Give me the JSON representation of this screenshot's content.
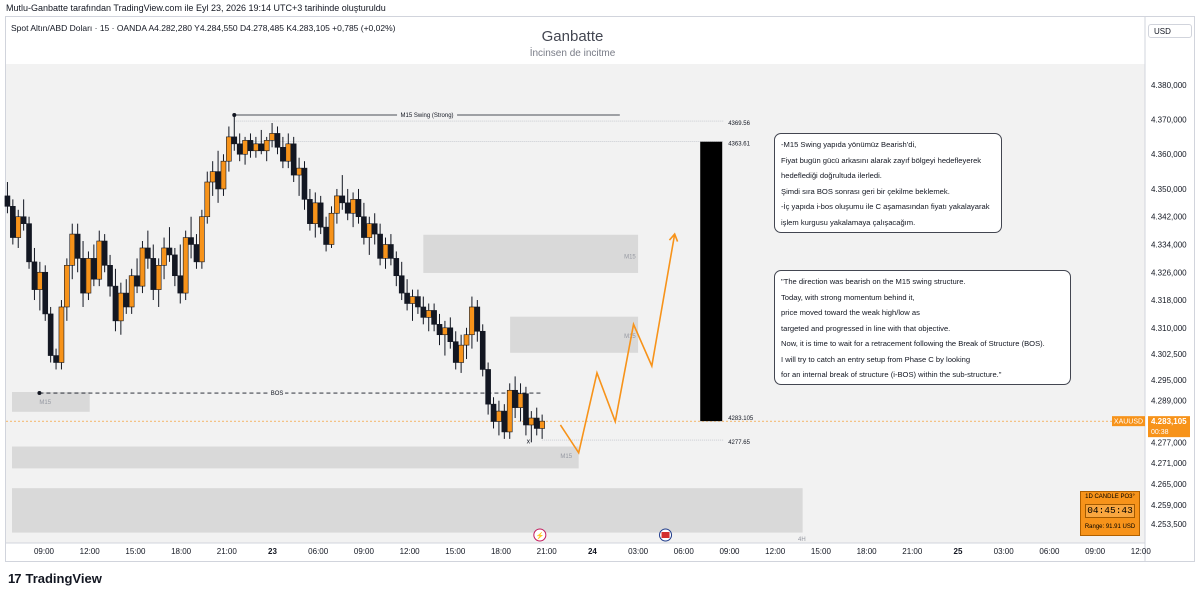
{
  "header": {
    "caption": "Mutlu-Ganbatte tarafından TradingView.com ile Eyl 23, 2026 19:14 UTC+3 tarihinde oluşturuldu"
  },
  "symbol_line": "Spot Altın/ABD Doları · 15 · OANDA  A4.282,280  Y4.284,550  D4.278,485  K4.283,105  +0,785 (+0,02%)",
  "watermark": {
    "title": "Ganbatte",
    "subtitle": "İncinsen de incitme"
  },
  "currency": "USD",
  "note_tr": [
    "-M15 Swing yapıda yönümüz Bearish'di,",
    "Fiyat bugün gücü arkasını alarak zayıf bölgeyi hedefleyerek",
    "hedeflediği doğrultuda ilerledi.",
    "Şimdi sıra BOS sonrası geri bir çekilme beklemek.",
    "-İç yapıda i-bos oluşumu ile C aşamasından fiyatı yakalayarak",
    "işlem kurgusu yakalamaya çalışacağım."
  ],
  "note_en": [
    "\"The direction was bearish on the M15 swing structure.",
    "Today, with strong momentum behind it,",
    "price moved toward the weak high/low as",
    "targeted and progressed in line with that objective.",
    "Now, it is time to wait for a retracement following the Break of Structure (BOS).",
    "I will try to catch an entry setup from Phase C by looking",
    "for an internal break of structure (i-BOS) within the sub-structure.\""
  ],
  "candle_box": {
    "label": "1D CANDLE PO3°",
    "timer": "04:45:43",
    "range": "Range: 91.91 USD"
  },
  "logo": {
    "mark": "17",
    "text": "TradingView"
  },
  "colors": {
    "up": "#f7931a",
    "down": "#131722",
    "projection": "#f7931a",
    "zone": "#d9d9d9",
    "price_tag": "#f7931a"
  },
  "chart_data": {
    "type": "candlestick",
    "ylim": [
      4248.0,
      4386.0
    ],
    "x_ticks": [
      "09:00",
      "12:00",
      "15:00",
      "18:00",
      "21:00",
      "23",
      "06:00",
      "09:00",
      "12:00",
      "15:00",
      "18:00",
      "21:00",
      "24",
      "03:00",
      "06:00",
      "09:00",
      "12:00",
      "15:00",
      "18:00",
      "21:00",
      "25",
      "03:00",
      "06:00",
      "09:00",
      "12:00"
    ],
    "y_ticks": [
      "4.380,000",
      "4.370,000",
      "4.360,000",
      "4.350,000",
      "4.342,000",
      "4.334,000",
      "4.326,000",
      "4.318,000",
      "4.310,000",
      "4.302,500",
      "4.295,000",
      "4.289,000",
      "4.277,000",
      "4.271,000",
      "4.265,000",
      "4.259,000",
      "4.253,500"
    ],
    "y_tick_values": [
      4380,
      4370,
      4360,
      4350,
      4342,
      4334,
      4326,
      4318,
      4310,
      4302.5,
      4295,
      4289,
      4277,
      4271,
      4265,
      4259,
      4253.5
    ],
    "current_price": {
      "symbol": "XAUUSD",
      "value": "4.283,105",
      "countdown": "00:38",
      "level": 4283.105
    },
    "levels": [
      {
        "value": 4369.56,
        "label": "4369.56"
      },
      {
        "value": 4363.61,
        "label": "4363.61"
      },
      {
        "value": 4283.105,
        "label": "4283.105"
      },
      {
        "value": 4277.65,
        "label": "4277.65"
      }
    ],
    "annotations": {
      "swing_label": "M15 Swing (Strong)",
      "bos_label": "BOS",
      "bos_level": 4291.2,
      "zone_label": "M15",
      "corner_label": "4H",
      "x_mark": "x"
    },
    "zones": [
      {
        "from_tick": 8.3,
        "to_tick": 13.0,
        "low": 4325.8,
        "high": 4336.8
      },
      {
        "from_tick": 10.2,
        "to_tick": 13.0,
        "low": 4302.8,
        "high": 4313.2
      },
      {
        "from_tick": -0.7,
        "to_tick": 1.0,
        "low": 4285.8,
        "high": 4291.5
      },
      {
        "from_tick": -0.7,
        "to_tick": 11.7,
        "low": 4269.5,
        "high": 4275.8
      },
      {
        "from_tick": -0.7,
        "to_tick": 16.6,
        "low": 4251.0,
        "high": 4263.8
      }
    ],
    "projection": [
      [
        11.3,
        4282.0
      ],
      [
        11.7,
        4274.0
      ],
      [
        12.1,
        4297.0
      ],
      [
        12.5,
        4283.0
      ],
      [
        12.9,
        4311.0
      ],
      [
        13.3,
        4299.0
      ],
      [
        13.8,
        4337.0
      ]
    ],
    "range_bar": {
      "tick": 14.6,
      "high": 4363.61,
      "low": 4283.105
    },
    "ohlc": [
      [
        4348.0,
        4352.0,
        4343.0,
        4345.0
      ],
      [
        4345.0,
        4347.0,
        4334.0,
        4336.0
      ],
      [
        4336.0,
        4344.0,
        4333.0,
        4342.0
      ],
      [
        4342.0,
        4347.0,
        4338.0,
        4340.0
      ],
      [
        4340.0,
        4342.0,
        4327.0,
        4329.0
      ],
      [
        4329.0,
        4333.0,
        4318.0,
        4321.0
      ],
      [
        4321.0,
        4329.0,
        4315.0,
        4326.0
      ],
      [
        4326.0,
        4328.0,
        4312.0,
        4314.0
      ],
      [
        4314.0,
        4316.0,
        4300.0,
        4302.0
      ],
      [
        4302.0,
        4304.0,
        4298.0,
        4300.0
      ],
      [
        4300.0,
        4318.0,
        4298.0,
        4316.0
      ],
      [
        4316.0,
        4330.0,
        4312.0,
        4328.0
      ],
      [
        4328.0,
        4340.0,
        4324.0,
        4337.0
      ],
      [
        4337.0,
        4340.0,
        4326.0,
        4330.0
      ],
      [
        4330.0,
        4335.0,
        4316.0,
        4320.0
      ],
      [
        4320.0,
        4332.0,
        4318.0,
        4330.0
      ],
      [
        4330.0,
        4334.0,
        4322.0,
        4324.0
      ],
      [
        4324.0,
        4338.0,
        4322.0,
        4335.0
      ],
      [
        4335.0,
        4337.0,
        4326.0,
        4328.0
      ],
      [
        4328.0,
        4331.0,
        4319.0,
        4322.0
      ],
      [
        4322.0,
        4327.0,
        4309.0,
        4312.0
      ],
      [
        4312.0,
        4323.0,
        4308.0,
        4320.0
      ],
      [
        4320.0,
        4324.0,
        4314.0,
        4316.0
      ],
      [
        4316.0,
        4327.0,
        4314.0,
        4325.0
      ],
      [
        4325.0,
        4330.0,
        4320.0,
        4322.0
      ],
      [
        4322.0,
        4335.0,
        4320.0,
        4333.0
      ],
      [
        4333.0,
        4338.0,
        4327.0,
        4330.0
      ],
      [
        4330.0,
        4334.0,
        4318.0,
        4321.0
      ],
      [
        4321.0,
        4330.0,
        4316.0,
        4328.0
      ],
      [
        4328.0,
        4336.0,
        4324.0,
        4333.0
      ],
      [
        4333.0,
        4339.0,
        4329.0,
        4331.0
      ],
      [
        4331.0,
        4333.0,
        4322.0,
        4325.0
      ],
      [
        4325.0,
        4334.0,
        4317.0,
        4320.0
      ],
      [
        4320.0,
        4338.0,
        4318.0,
        4336.0
      ],
      [
        4336.0,
        4342.0,
        4330.0,
        4334.0
      ],
      [
        4334.0,
        4337.0,
        4327.0,
        4329.0
      ],
      [
        4329.0,
        4344.0,
        4327.0,
        4342.0
      ],
      [
        4342.0,
        4355.0,
        4340.0,
        4352.0
      ],
      [
        4352.0,
        4358.0,
        4348.0,
        4355.0
      ],
      [
        4355.0,
        4361.0,
        4346.0,
        4350.0
      ],
      [
        4350.0,
        4360.0,
        4348.0,
        4358.0
      ],
      [
        4358.0,
        4368.0,
        4355.0,
        4365.0
      ],
      [
        4365.0,
        4371.0,
        4361.0,
        4363.0
      ],
      [
        4363.0,
        4366.0,
        4358.0,
        4360.0
      ],
      [
        4360.0,
        4365.0,
        4357.0,
        4364.0
      ],
      [
        4364.0,
        4366.0,
        4359.0,
        4361.0
      ],
      [
        4361.0,
        4365.0,
        4359.0,
        4363.0
      ],
      [
        4363.0,
        4367.0,
        4360.0,
        4361.0
      ],
      [
        4361.0,
        4365.0,
        4358.0,
        4364.0
      ],
      [
        4364.0,
        4369.0,
        4362.0,
        4366.0
      ],
      [
        4366.0,
        4368.0,
        4360.0,
        4362.0
      ],
      [
        4362.0,
        4365.0,
        4356.0,
        4358.0
      ],
      [
        4358.0,
        4366.0,
        4356.0,
        4363.0
      ],
      [
        4363.0,
        4365.0,
        4352.0,
        4354.0
      ],
      [
        4354.0,
        4359.0,
        4348.0,
        4356.0
      ],
      [
        4356.0,
        4358.0,
        4344.0,
        4347.0
      ],
      [
        4347.0,
        4350.0,
        4338.0,
        4340.0
      ],
      [
        4340.0,
        4349.0,
        4336.0,
        4346.0
      ],
      [
        4346.0,
        4348.0,
        4337.0,
        4339.0
      ],
      [
        4339.0,
        4342.0,
        4332.0,
        4334.0
      ],
      [
        4334.0,
        4345.0,
        4333.0,
        4343.0
      ],
      [
        4343.0,
        4350.0,
        4340.0,
        4348.0
      ],
      [
        4348.0,
        4354.0,
        4344.0,
        4346.0
      ],
      [
        4346.0,
        4350.0,
        4341.0,
        4343.0
      ],
      [
        4343.0,
        4349.0,
        4339.0,
        4347.0
      ],
      [
        4347.0,
        4350.0,
        4340.0,
        4342.0
      ],
      [
        4342.0,
        4346.0,
        4334.0,
        4336.0
      ],
      [
        4336.0,
        4342.0,
        4331.0,
        4340.0
      ],
      [
        4340.0,
        4343.0,
        4334.0,
        4337.0
      ],
      [
        4337.0,
        4340.0,
        4328.0,
        4330.0
      ],
      [
        4330.0,
        4336.0,
        4327.0,
        4334.0
      ],
      [
        4334.0,
        4337.0,
        4328.0,
        4330.0
      ],
      [
        4330.0,
        4332.0,
        4322.0,
        4325.0
      ],
      [
        4325.0,
        4329.0,
        4318.0,
        4320.0
      ],
      [
        4320.0,
        4324.0,
        4315.0,
        4317.0
      ],
      [
        4317.0,
        4321.0,
        4312.0,
        4319.0
      ],
      [
        4319.0,
        4321.0,
        4314.0,
        4316.0
      ],
      [
        4316.0,
        4319.0,
        4311.0,
        4313.0
      ],
      [
        4313.0,
        4317.0,
        4309.0,
        4315.0
      ],
      [
        4315.0,
        4317.0,
        4309.0,
        4311.0
      ],
      [
        4311.0,
        4314.0,
        4305.0,
        4308.0
      ],
      [
        4308.0,
        4312.0,
        4302.0,
        4310.0
      ],
      [
        4310.0,
        4313.0,
        4304.0,
        4306.0
      ],
      [
        4306.0,
        4309.0,
        4298.0,
        4300.0
      ],
      [
        4300.0,
        4308.0,
        4297.0,
        4305.0
      ],
      [
        4305.0,
        4310.0,
        4301.0,
        4308.0
      ],
      [
        4308.0,
        4319.0,
        4304.0,
        4316.0
      ],
      [
        4316.0,
        4318.0,
        4306.0,
        4309.0
      ],
      [
        4309.0,
        4311.0,
        4296.0,
        4298.0
      ],
      [
        4298.0,
        4300.0,
        4285.0,
        4288.0
      ],
      [
        4288.0,
        4290.0,
        4281.0,
        4283.0
      ],
      [
        4283.0,
        4289.0,
        4279.0,
        4286.0
      ],
      [
        4286.0,
        4288.0,
        4278.0,
        4280.0
      ],
      [
        4280.0,
        4294.0,
        4278.0,
        4292.0
      ],
      [
        4292.0,
        4296.0,
        4284.0,
        4287.0
      ],
      [
        4287.0,
        4294.0,
        4283.0,
        4291.0
      ],
      [
        4291.0,
        4293.0,
        4279.0,
        4282.0
      ],
      [
        4282.0,
        4286.0,
        4277.0,
        4284.0
      ],
      [
        4284.0,
        4287.0,
        4279.0,
        4281.0
      ],
      [
        4281.0,
        4285.0,
        4278.0,
        4283.1
      ]
    ]
  }
}
